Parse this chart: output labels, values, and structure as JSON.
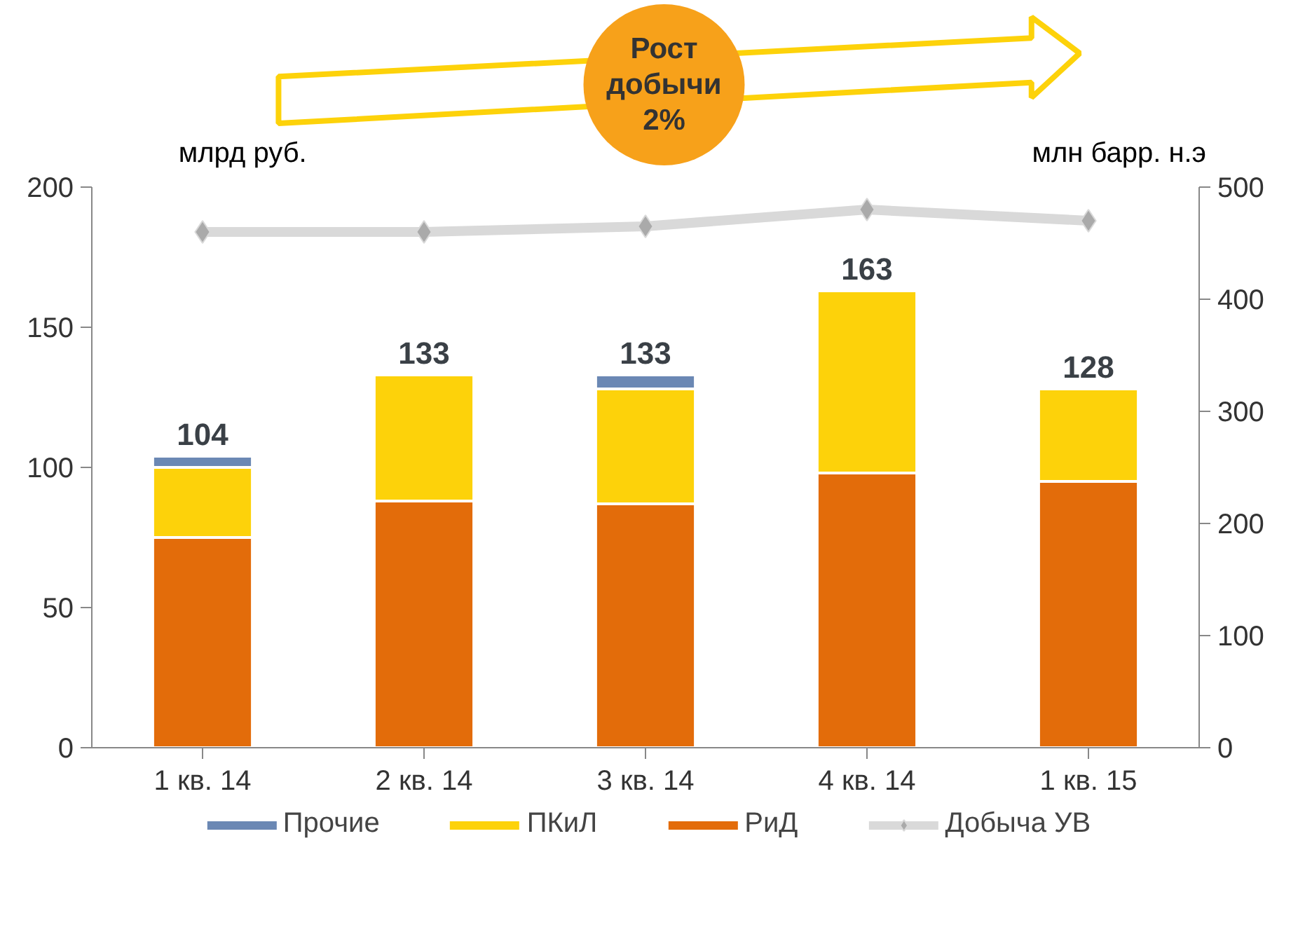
{
  "chart_data": {
    "type": "bar",
    "stacked": true,
    "categories": [
      "1 кв. 14",
      "2 кв. 14",
      "3 кв. 14",
      "4 кв. 14",
      "1 кв. 15"
    ],
    "series": [
      {
        "name": "РиД",
        "color": "#e36c0a",
        "values": [
          75,
          88,
          87,
          98,
          95
        ]
      },
      {
        "name": "ПКиЛ",
        "color": "#fdd20a",
        "values": [
          25,
          45,
          41,
          65,
          33
        ]
      },
      {
        "name": "Прочие",
        "color": "#6b88b4",
        "values": [
          4,
          null,
          5,
          null,
          null
        ]
      },
      {
        "name": "Добыча УВ",
        "type": "line",
        "axis": "y2",
        "color": "#d9d9d9",
        "marker": "diamond",
        "values": [
          460,
          460,
          465,
          480,
          470
        ]
      }
    ],
    "totals": [
      "104",
      "133",
      "133",
      "163",
      "128"
    ],
    "ylabel": "млрд руб.",
    "y2label": "млн барр. н.э",
    "ylim": [
      0,
      200
    ],
    "yticks": [
      0,
      50,
      100,
      150,
      200
    ],
    "y2lim": [
      0,
      500
    ],
    "y2ticks": [
      0,
      100,
      200,
      300,
      400,
      500
    ],
    "annotations": [
      "Рост\nдобычи\n2%"
    ],
    "grid": false,
    "legend": "bottom"
  }
}
